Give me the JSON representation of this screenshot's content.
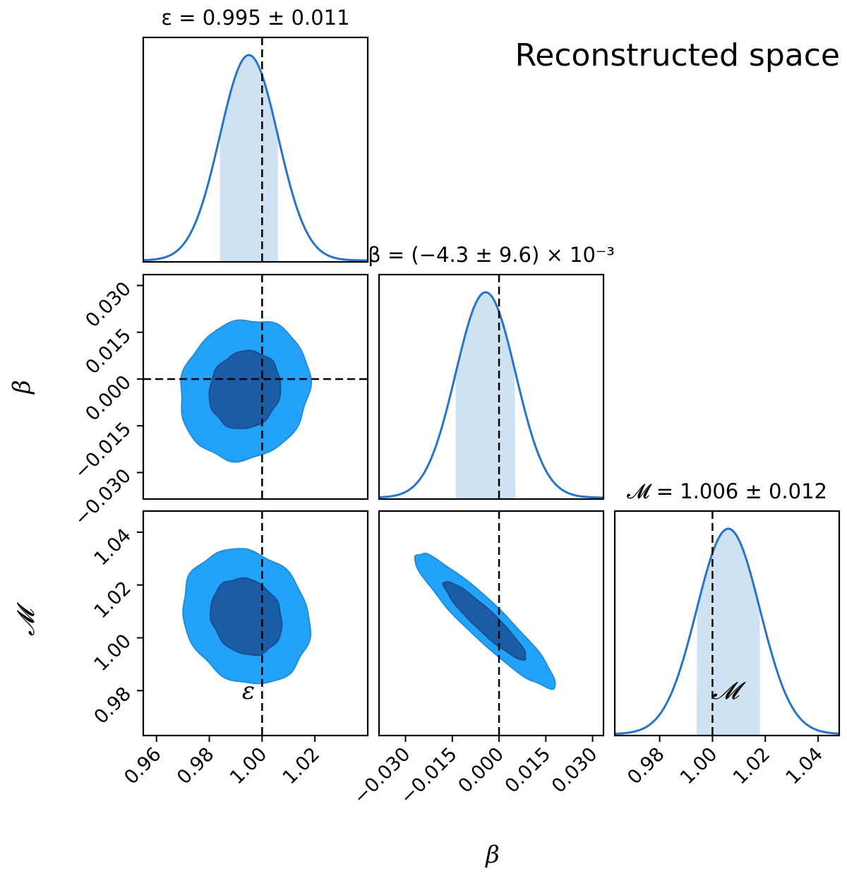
{
  "figure_title": "Reconstructed space",
  "chart_data": {
    "type": "corner",
    "colors": {
      "inner": "#1a5da6",
      "outer": "#22a2fb",
      "outer_edge": "#1f8fd6",
      "line": "#2674cc",
      "band": "#cfe2f4",
      "truth": "#000000"
    },
    "parameters": [
      {
        "name": "epsilon",
        "symbol": "ε",
        "mean": 0.995,
        "sigma": 0.011,
        "truth": 1.0,
        "range": [
          0.955,
          1.04
        ],
        "ticks": [
          0.96,
          0.98,
          1.0,
          1.02
        ],
        "tick_labels": [
          "0.96",
          "0.98",
          "1.00",
          "1.02"
        ],
        "label": "ε",
        "title": "ε = 0.995 ± 0.011"
      },
      {
        "name": "beta",
        "symbol": "β",
        "mean": -0.0043,
        "sigma": 0.0096,
        "truth": 0.0,
        "range": [
          -0.0385,
          0.0335
        ],
        "ticks": [
          -0.03,
          -0.015,
          0.0,
          0.015,
          0.03
        ],
        "tick_labels": [
          "−0.030",
          "−0.015",
          "0.000",
          "0.015",
          "0.030"
        ],
        "label": "β",
        "title": "β = (−4.3 ± 9.6) × 10⁻³"
      },
      {
        "name": "M",
        "symbol": "𝓜",
        "mean": 1.006,
        "sigma": 0.012,
        "truth": 1.0,
        "range": [
          0.963,
          1.048
        ],
        "ticks": [
          0.98,
          1.0,
          1.02,
          1.04
        ],
        "tick_labels": [
          "0.98",
          "1.00",
          "1.02",
          "1.04"
        ],
        "label": "𝓜",
        "title": "𝓜 = 1.006 ± 0.012"
      }
    ],
    "contours": [
      {
        "x": "epsilon",
        "y": "beta",
        "center": [
          0.9935,
          -0.0035
        ],
        "outer_half_axes": [
          0.0245,
          0.0225
        ],
        "inner_half_axes": [
          0.0135,
          0.0125
        ],
        "correlation": 0.1
      },
      {
        "x": "epsilon",
        "y": "M",
        "center": [
          0.994,
          1.008
        ],
        "outer_half_axes": [
          0.024,
          0.0255
        ],
        "inner_half_axes": [
          0.0135,
          0.0145
        ],
        "correlation": -0.15
      },
      {
        "x": "beta",
        "y": "M",
        "center": [
          -0.0045,
          1.0065
        ],
        "outer_half_axes": [
          0.0225,
          0.0255
        ],
        "inner_half_axes": [
          0.0132,
          0.0148
        ],
        "correlation": -0.93
      }
    ],
    "credible_band": "68%",
    "grid": false,
    "legend": "none"
  }
}
